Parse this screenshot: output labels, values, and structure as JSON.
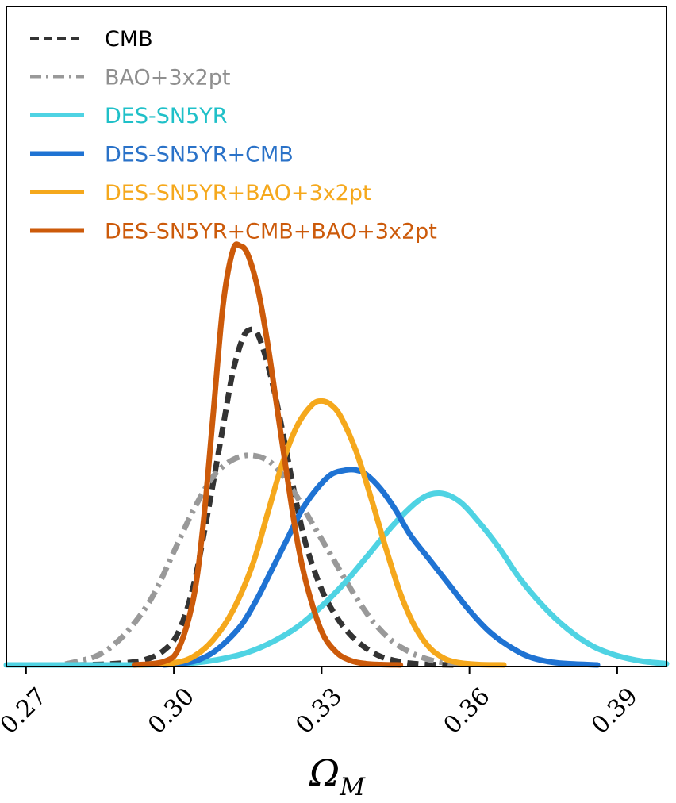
{
  "chart_data": {
    "type": "line",
    "title": "",
    "xlabel": "Ω_M",
    "xlabel_main": "Ω",
    "xlabel_sub": "M",
    "ylabel": "",
    "xlim": [
      0.266,
      0.4
    ],
    "ylim": [
      0,
      1.0
    ],
    "x_ticks": [
      0.27,
      0.3,
      0.33,
      0.36,
      0.39
    ],
    "x_tick_labels": [
      "0.27",
      "0.30",
      "0.33",
      "0.36",
      "0.39"
    ],
    "y_ticks_shown": false,
    "legend_position": "top-left",
    "series": [
      {
        "name": "CMB",
        "color": "#333333",
        "style": "dashed",
        "x": [
          0.28,
          0.288,
          0.294,
          0.298,
          0.301,
          0.304,
          0.307,
          0.31,
          0.312,
          0.314,
          0.3155,
          0.317,
          0.319,
          0.321,
          0.323,
          0.325,
          0.327,
          0.33,
          0.333,
          0.336,
          0.339,
          0.342,
          0.345,
          0.348,
          0.352,
          0.357
        ],
        "y": [
          0.0,
          0.003,
          0.012,
          0.035,
          0.08,
          0.19,
          0.37,
          0.57,
          0.7,
          0.78,
          0.8,
          0.79,
          0.72,
          0.62,
          0.5,
          0.38,
          0.28,
          0.18,
          0.115,
          0.07,
          0.04,
          0.02,
          0.01,
          0.004,
          0.001,
          0.0
        ]
      },
      {
        "name": "BAO+3x2pt",
        "color": "#999999",
        "style": "dashdot",
        "x": [
          0.278,
          0.284,
          0.288,
          0.292,
          0.296,
          0.3,
          0.304,
          0.308,
          0.312,
          0.316,
          0.32,
          0.324,
          0.328,
          0.332,
          0.336,
          0.34,
          0.344,
          0.348,
          0.352,
          0.356,
          0.36
        ],
        "y": [
          0.002,
          0.02,
          0.05,
          0.1,
          0.17,
          0.27,
          0.37,
          0.45,
          0.49,
          0.5,
          0.48,
          0.42,
          0.34,
          0.26,
          0.18,
          0.11,
          0.06,
          0.03,
          0.012,
          0.004,
          0.001
        ]
      },
      {
        "name": "DES-SN5YR",
        "color": "#4fd3e3",
        "style": "solid",
        "x": [
          0.266,
          0.29,
          0.3,
          0.305,
          0.31,
          0.315,
          0.32,
          0.325,
          0.33,
          0.335,
          0.34,
          0.345,
          0.35,
          0.354,
          0.358,
          0.362,
          0.366,
          0.37,
          0.375,
          0.38,
          0.385,
          0.39,
          0.395,
          0.4
        ],
        "y": [
          0.0,
          0.0,
          0.002,
          0.006,
          0.015,
          0.03,
          0.055,
          0.09,
          0.14,
          0.2,
          0.27,
          0.34,
          0.395,
          0.41,
          0.39,
          0.34,
          0.28,
          0.21,
          0.14,
          0.085,
          0.045,
          0.022,
          0.009,
          0.003
        ]
      },
      {
        "name": "DES-SN5YR+CMB",
        "color": "#1f73d3",
        "style": "solid",
        "x": [
          0.298,
          0.302,
          0.305,
          0.308,
          0.311,
          0.314,
          0.317,
          0.32,
          0.323,
          0.326,
          0.329,
          0.332,
          0.335,
          0.337,
          0.339,
          0.342,
          0.345,
          0.348,
          0.352,
          0.356,
          0.36,
          0.364,
          0.368,
          0.372,
          0.376,
          0.38,
          0.386
        ],
        "y": [
          0.0,
          0.004,
          0.012,
          0.03,
          0.06,
          0.1,
          0.16,
          0.23,
          0.3,
          0.37,
          0.42,
          0.455,
          0.465,
          0.465,
          0.455,
          0.42,
          0.37,
          0.31,
          0.25,
          0.19,
          0.13,
          0.08,
          0.045,
          0.02,
          0.008,
          0.003,
          0.0
        ]
      },
      {
        "name": "DES-SN5YR+BAO+3x2pt",
        "color": "#f5a81c",
        "style": "solid",
        "x": [
          0.293,
          0.3,
          0.304,
          0.308,
          0.312,
          0.316,
          0.319,
          0.322,
          0.325,
          0.328,
          0.33,
          0.332,
          0.334,
          0.337,
          0.34,
          0.343,
          0.346,
          0.349,
          0.352,
          0.355,
          0.358,
          0.362,
          0.367
        ],
        "y": [
          0.0,
          0.005,
          0.02,
          0.06,
          0.13,
          0.24,
          0.36,
          0.48,
          0.57,
          0.62,
          0.63,
          0.62,
          0.59,
          0.51,
          0.4,
          0.28,
          0.17,
          0.09,
          0.04,
          0.015,
          0.005,
          0.001,
          0.0
        ]
      },
      {
        "name": "DES-SN5YR+CMB+BAO+3x2pt",
        "color": "#cc5a0a",
        "style": "solid",
        "x": [
          0.292,
          0.298,
          0.301,
          0.304,
          0.306,
          0.308,
          0.31,
          0.312,
          0.3135,
          0.315,
          0.317,
          0.319,
          0.321,
          0.323,
          0.325,
          0.327,
          0.33,
          0.333,
          0.336,
          0.339,
          0.342,
          0.346
        ],
        "y": [
          0.0,
          0.008,
          0.04,
          0.16,
          0.34,
          0.6,
          0.86,
          0.99,
          1.0,
          0.98,
          0.9,
          0.77,
          0.61,
          0.45,
          0.3,
          0.19,
          0.08,
          0.03,
          0.01,
          0.003,
          0.001,
          0.0
        ]
      }
    ]
  }
}
